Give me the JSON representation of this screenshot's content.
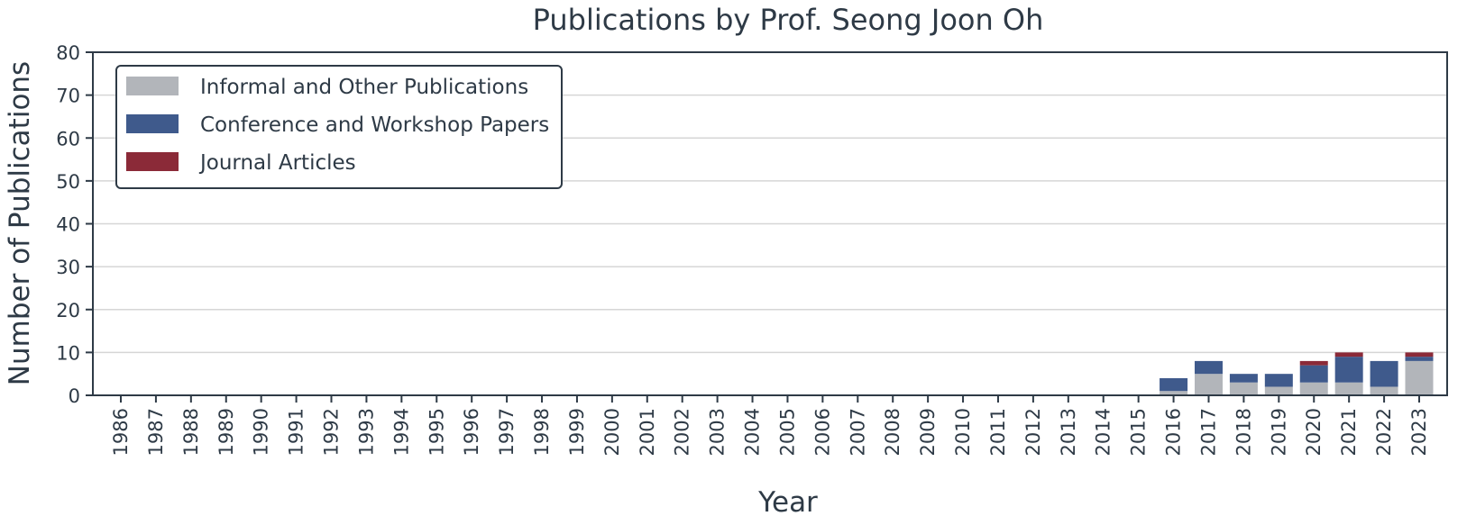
{
  "chart_data": {
    "type": "bar",
    "stacked": true,
    "title": "Publications by Prof. Seong Joon Oh",
    "xlabel": "Year",
    "ylabel": "Number of Publications",
    "ylim": [
      0,
      80
    ],
    "yticks": [
      0,
      10,
      20,
      30,
      40,
      50,
      60,
      70,
      80
    ],
    "grid": true,
    "legend_position": "top-left",
    "categories": [
      "1986",
      "1987",
      "1988",
      "1989",
      "1990",
      "1991",
      "1992",
      "1993",
      "1994",
      "1995",
      "1996",
      "1997",
      "1998",
      "1999",
      "2000",
      "2001",
      "2002",
      "2003",
      "2004",
      "2005",
      "2006",
      "2007",
      "2008",
      "2009",
      "2010",
      "2011",
      "2012",
      "2013",
      "2014",
      "2015",
      "2016",
      "2017",
      "2018",
      "2019",
      "2020",
      "2021",
      "2022",
      "2023"
    ],
    "series": [
      {
        "name": "Informal and Other Publications",
        "color": "#b2b5ba",
        "values": [
          0,
          0,
          0,
          0,
          0,
          0,
          0,
          0,
          0,
          0,
          0,
          0,
          0,
          0,
          0,
          0,
          0,
          0,
          0,
          0,
          0,
          0,
          0,
          0,
          0,
          0,
          0,
          0,
          0,
          0,
          1,
          5,
          3,
          2,
          3,
          3,
          2,
          8
        ]
      },
      {
        "name": "Conference and Workshop Papers",
        "color": "#3f5a8c",
        "values": [
          0,
          0,
          0,
          0,
          0,
          0,
          0,
          0,
          0,
          0,
          0,
          0,
          0,
          0,
          0,
          0,
          0,
          0,
          0,
          0,
          0,
          0,
          0,
          0,
          0,
          0,
          0,
          0,
          0,
          0,
          3,
          3,
          2,
          3,
          4,
          6,
          6,
          1
        ]
      },
      {
        "name": "Journal Articles",
        "color": "#8b2a38",
        "values": [
          0,
          0,
          0,
          0,
          0,
          0,
          0,
          0,
          0,
          0,
          0,
          0,
          0,
          0,
          0,
          0,
          0,
          0,
          0,
          0,
          0,
          0,
          0,
          0,
          0,
          0,
          0,
          0,
          0,
          0,
          0,
          0,
          0,
          0,
          1,
          1,
          0,
          1
        ]
      }
    ]
  }
}
